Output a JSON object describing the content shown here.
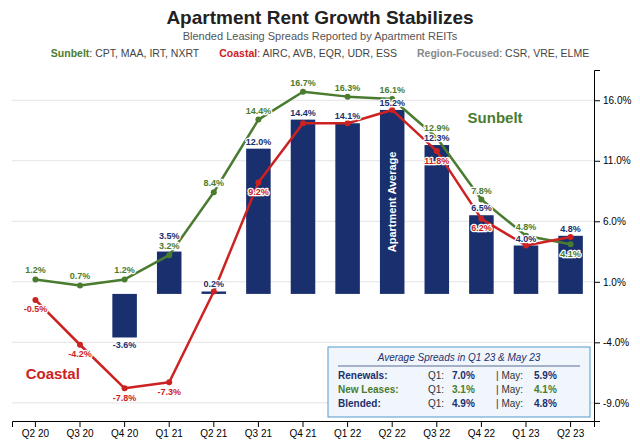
{
  "chart_data": {
    "type": "bar",
    "title": "Apartment Rent Growth Stabilizes",
    "subtitle": "Blended Leasing Spreads Reported by Apartment REITs",
    "categories": [
      "Q2 20",
      "Q3 20",
      "Q4 20",
      "Q1 21",
      "Q2 21",
      "Q3 21",
      "Q4 21",
      "Q1 22",
      "Q2 22",
      "Q3 22",
      "Q4 22",
      "Q1 23",
      "Q2 23"
    ],
    "series": [
      {
        "name": "Apartment Average",
        "type": "bar",
        "color": "#1a2f6e",
        "values": [
          null,
          null,
          -3.6,
          3.5,
          0.2,
          12.0,
          14.4,
          14.1,
          15.2,
          12.3,
          6.5,
          4.0,
          4.8
        ],
        "value_labels": [
          null,
          null,
          "-3.6%",
          "3.5%",
          "0.2%",
          "12.0%",
          "14.4%",
          "14.1%",
          "15.2%",
          "12.3%",
          "6.5%",
          "4.0%",
          "4.8%"
        ]
      },
      {
        "name": "Sunbelt",
        "type": "line",
        "color": "#4a7c2f",
        "marker": "circle",
        "values": [
          1.2,
          0.7,
          1.2,
          3.2,
          8.4,
          14.4,
          16.7,
          16.3,
          16.1,
          12.9,
          7.8,
          4.8,
          4.1
        ],
        "value_labels": [
          "1.2%",
          "0.7%",
          "1.2%",
          "3.2%",
          "8.4%",
          "14.4%",
          "16.7%",
          "16.3%",
          "16.1%",
          "12.9%",
          "7.8%",
          "4.8%",
          "4.1%"
        ]
      },
      {
        "name": "Coastal",
        "type": "line",
        "color": "#cc2222",
        "marker": "circle",
        "values": [
          -0.5,
          -4.2,
          -7.8,
          -7.3,
          0.2,
          9.2,
          14.1,
          14.1,
          15.2,
          11.8,
          6.2,
          4.0,
          4.7
        ],
        "value_labels": [
          "-0.5%",
          "-4.2%",
          "-7.8%",
          "-7.3%",
          null,
          "9.2%",
          null,
          null,
          null,
          "11.8%",
          "6.2%",
          null,
          null
        ]
      }
    ],
    "ylim": [
      -10.5,
      18.5
    ],
    "yticks": [
      {
        "value": -9.0,
        "label": "-9.0%"
      },
      {
        "value": -4.0,
        "label": "-4.0%"
      },
      {
        "value": 1.0,
        "label": "1.0%"
      },
      {
        "value": 6.0,
        "label": "6.0%"
      },
      {
        "value": 11.0,
        "label": "11.0%"
      },
      {
        "value": 16.0,
        "label": "16.0%"
      }
    ],
    "grid": true,
    "data_labels": true,
    "annotations": [
      {
        "label": "Sunbelt",
        "text": ": CPT, MAA, IRT, NXRT",
        "color": "#4a7c2f"
      },
      {
        "label": "Coastal",
        "text": ": AIRC, AVB, EQR, UDR, ESS",
        "color": "#cc2222"
      },
      {
        "label": "Region-Focused",
        "text": ": CSR, VRE, ELME",
        "color": "#888888"
      }
    ],
    "info_box": {
      "title": "Average Spreads in Q1 23 & May 23",
      "columns": [
        "Q1:",
        "| May:"
      ],
      "rows": [
        {
          "label": "Renewals:",
          "color": "#1a2f6e",
          "cells": [
            "7.0%",
            "5.9%"
          ]
        },
        {
          "label": "New Leases:",
          "color": "#4a7c2f",
          "cells": [
            "3.1%",
            "4.1%"
          ]
        },
        {
          "label": "Blended:",
          "color": "#1a2f6e",
          "cells": [
            "4.9%",
            "4.8%"
          ]
        }
      ]
    }
  }
}
